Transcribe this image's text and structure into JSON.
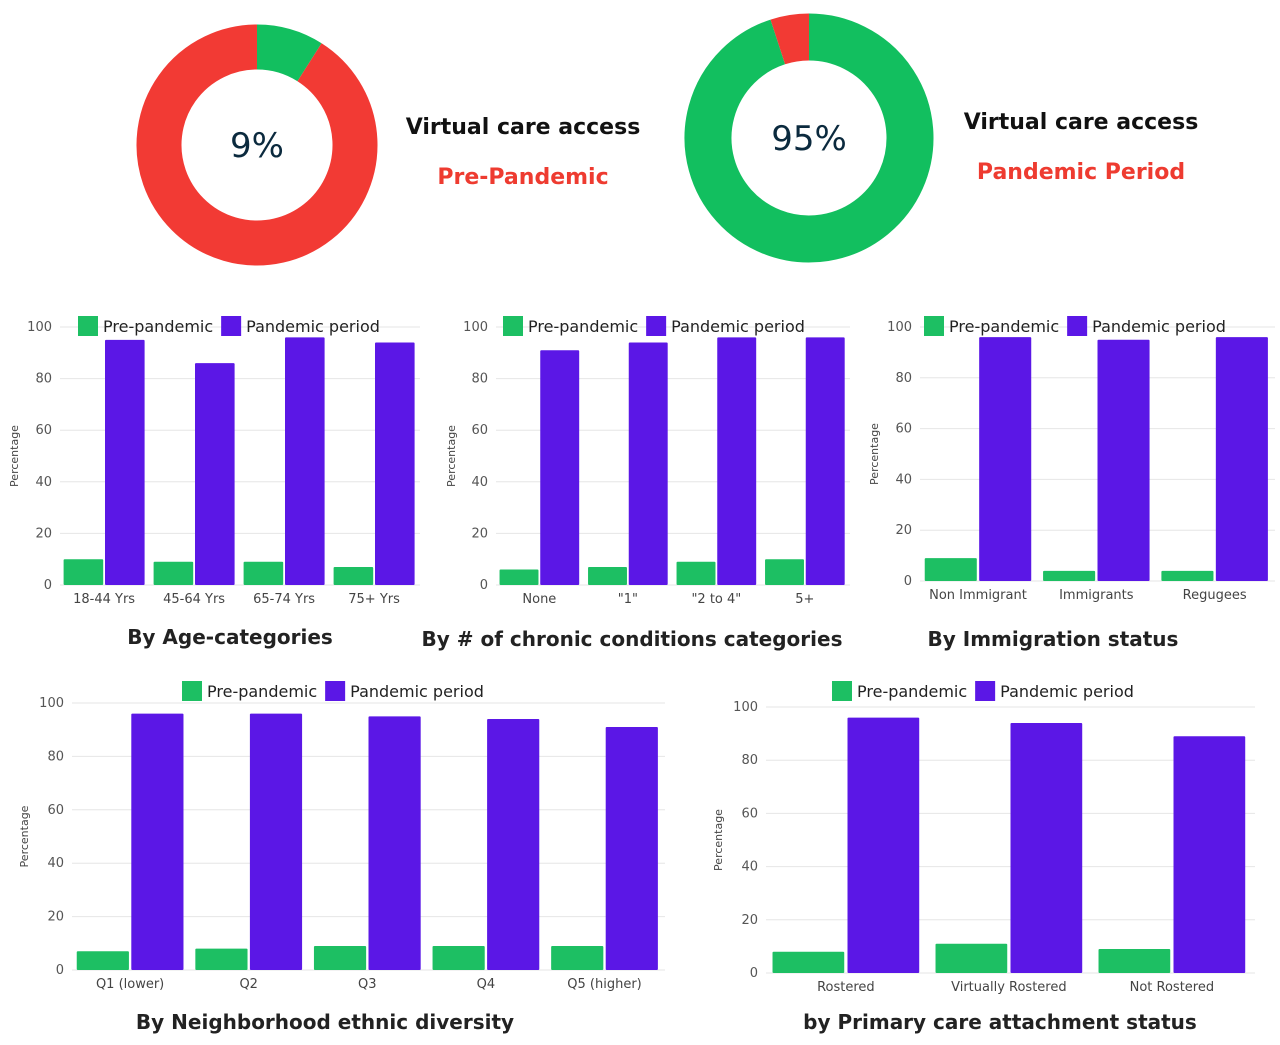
{
  "colors": {
    "pre": "#1dbf63",
    "pandemic": "#5b17e6",
    "donut_red": "#f23a34",
    "donut_green": "#12bf5f",
    "text_dark": "#111111",
    "text_red": "#ee3b30",
    "donut_center": "#0b2a3e"
  },
  "donuts": [
    {
      "percent_label": "9%",
      "green_fraction": 0.09,
      "title": "Virtual care access",
      "subtitle": "Pre-Pandemic"
    },
    {
      "percent_label": "95%",
      "green_fraction": 0.95,
      "title": "Virtual care access",
      "subtitle": "Pandemic Period"
    }
  ],
  "chart_data": [
    {
      "type": "bar",
      "title": "By Age-categories",
      "ylabel": "Percentage",
      "ylim": [
        0,
        100
      ],
      "yticks": [
        0,
        20,
        40,
        60,
        80,
        100
      ],
      "legend": "top",
      "categories": [
        "18-44 Yrs",
        "45-64 Yrs",
        "65-74 Yrs",
        "75+ Yrs"
      ],
      "series": [
        {
          "name": "Pre-pandemic",
          "values": [
            10,
            9,
            9,
            7
          ]
        },
        {
          "name": "Pandemic period",
          "values": [
            95,
            86,
            96,
            94
          ]
        }
      ]
    },
    {
      "type": "bar",
      "title": "By # of chronic conditions categories",
      "ylabel": "Percentage",
      "ylim": [
        0,
        100
      ],
      "yticks": [
        0,
        20,
        40,
        60,
        80,
        100
      ],
      "legend": "top",
      "categories": [
        "None",
        "\"1\"",
        "\"2 to 4\"",
        "5+"
      ],
      "series": [
        {
          "name": "Pre-pandemic",
          "values": [
            6,
            7,
            9,
            10
          ]
        },
        {
          "name": "Pandemic period",
          "values": [
            91,
            94,
            96,
            96
          ]
        }
      ]
    },
    {
      "type": "bar",
      "title": "By Immigration status",
      "ylabel": "Percentage",
      "ylim": [
        0,
        100
      ],
      "yticks": [
        0,
        20,
        40,
        60,
        80,
        100
      ],
      "legend": "top",
      "categories": [
        "Non Immigrant",
        "Immigrants",
        "Regugees"
      ],
      "series": [
        {
          "name": "Pre-pandemic",
          "values": [
            9,
            4,
            4
          ]
        },
        {
          "name": "Pandemic period",
          "values": [
            96,
            95,
            96
          ]
        }
      ]
    },
    {
      "type": "bar",
      "title": "By Neighborhood ethnic diversity",
      "ylabel": "Percentage",
      "ylim": [
        0,
        100
      ],
      "yticks": [
        0,
        20,
        40,
        60,
        80,
        100
      ],
      "legend": "top",
      "categories": [
        "Q1 (lower)",
        "Q2",
        "Q3",
        "Q4",
        "Q5 (higher)"
      ],
      "series": [
        {
          "name": "Pre-pandemic",
          "values": [
            7,
            8,
            9,
            9,
            9
          ]
        },
        {
          "name": "Pandemic period",
          "values": [
            96,
            96,
            95,
            94,
            91
          ]
        }
      ]
    },
    {
      "type": "bar",
      "title": "by Primary care attachment status",
      "ylabel": "Percentage",
      "ylim": [
        0,
        100
      ],
      "yticks": [
        0,
        20,
        40,
        60,
        80,
        100
      ],
      "legend": "top",
      "categories": [
        "Rostered",
        "Virtually Rostered",
        "Not Rostered"
      ],
      "series": [
        {
          "name": "Pre-pandemic",
          "values": [
            8,
            11,
            9
          ]
        },
        {
          "name": "Pandemic period",
          "values": [
            96,
            94,
            89
          ]
        }
      ]
    }
  ]
}
